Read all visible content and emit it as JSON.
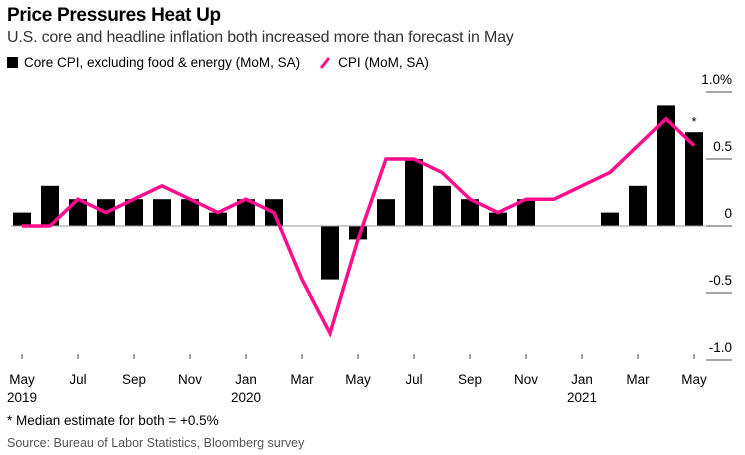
{
  "chart_data": {
    "type": "bar",
    "title": "Price Pressures Heat Up",
    "subtitle": "U.S. core and headline inflation both increased more than forecast in May",
    "xlabel": "",
    "ylabel": "",
    "ylim": [
      -1.0,
      1.0
    ],
    "yticks": [
      {
        "value": 1.0,
        "label": "1.0%"
      },
      {
        "value": 0.5,
        "label": "0.5"
      },
      {
        "value": 0,
        "label": "0"
      },
      {
        "value": -0.5,
        "label": "-0.5"
      },
      {
        "value": -1.0,
        "label": "-1.0"
      }
    ],
    "categories": [
      "May 2019",
      "Jun 2019",
      "Jul 2019",
      "Aug 2019",
      "Sep 2019",
      "Oct 2019",
      "Nov 2019",
      "Dec 2019",
      "Jan 2020",
      "Feb 2020",
      "Mar 2020",
      "Apr 2020",
      "May 2020",
      "Jun 2020",
      "Jul 2020",
      "Aug 2020",
      "Sep 2020",
      "Oct 2020",
      "Nov 2020",
      "Dec 2020",
      "Jan 2021",
      "Feb 2021",
      "Mar 2021",
      "Apr 2021",
      "May 2021"
    ],
    "xticks": [
      {
        "index": 0,
        "label": "May",
        "year": "2019"
      },
      {
        "index": 2,
        "label": "Jul",
        "year": ""
      },
      {
        "index": 4,
        "label": "Sep",
        "year": ""
      },
      {
        "index": 6,
        "label": "Nov",
        "year": ""
      },
      {
        "index": 8,
        "label": "Jan",
        "year": "2020"
      },
      {
        "index": 10,
        "label": "Mar",
        "year": ""
      },
      {
        "index": 12,
        "label": "May",
        "year": ""
      },
      {
        "index": 14,
        "label": "Jul",
        "year": ""
      },
      {
        "index": 16,
        "label": "Sep",
        "year": ""
      },
      {
        "index": 18,
        "label": "Nov",
        "year": ""
      },
      {
        "index": 20,
        "label": "Jan",
        "year": "2021"
      },
      {
        "index": 22,
        "label": "Mar",
        "year": ""
      },
      {
        "index": 24,
        "label": "May",
        "year": ""
      }
    ],
    "series": [
      {
        "name": "Core CPI, excluding food & energy (MoM, SA)",
        "type": "bar",
        "color": "#000000",
        "values": [
          0.1,
          0.3,
          0.2,
          0.2,
          0.2,
          0.2,
          0.2,
          0.1,
          0.2,
          0.2,
          0.0,
          -0.4,
          -0.1,
          0.2,
          0.5,
          0.3,
          0.2,
          0.1,
          0.2,
          0.0,
          0.0,
          0.1,
          0.3,
          0.9,
          0.7
        ]
      },
      {
        "name": "CPI (MoM, SA)",
        "type": "line",
        "color": "#ff0d8c",
        "values": [
          0.0,
          0.0,
          0.2,
          0.1,
          0.2,
          0.3,
          0.2,
          0.1,
          0.2,
          0.1,
          -0.4,
          -0.8,
          -0.1,
          0.5,
          0.5,
          0.4,
          0.2,
          0.1,
          0.2,
          0.2,
          0.3,
          0.4,
          0.6,
          0.8,
          0.6
        ]
      }
    ],
    "annotations": [
      {
        "index": 24,
        "text": "*"
      }
    ],
    "legend_position": "top-left",
    "grid": false
  },
  "legend": {
    "bar_label": "Core CPI, excluding food & energy (MoM, SA)",
    "line_label": "CPI (MoM, SA)"
  },
  "footnote": "* Median estimate for both = +0.5%",
  "source": "Source: Bureau of Labor Statistics, Bloomberg survey"
}
